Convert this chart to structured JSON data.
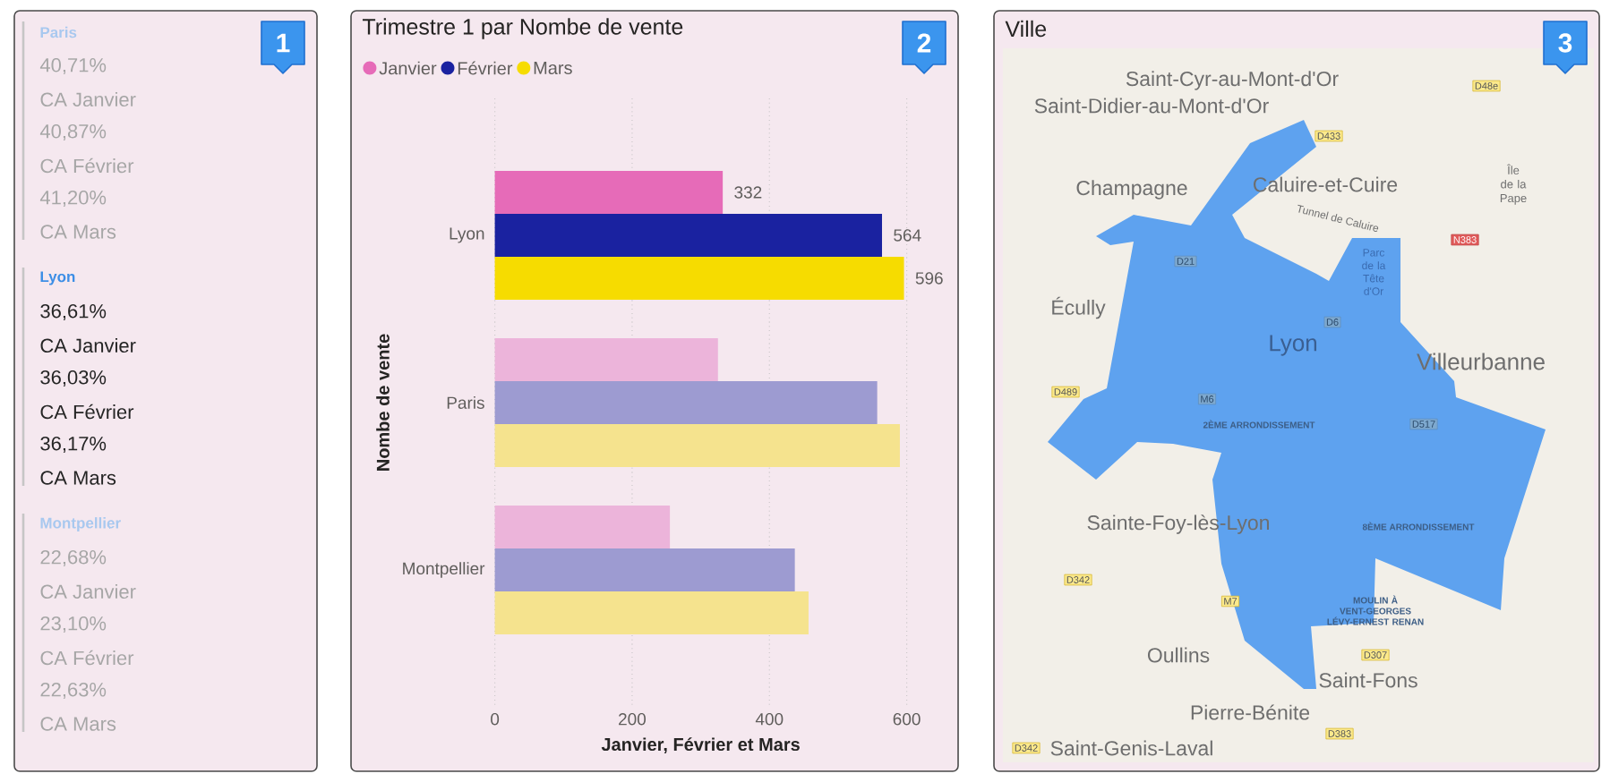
{
  "chart_data": [
    {
      "type": "other",
      "categories": [
        "Paris",
        "Lyon",
        "Montpellier"
      ],
      "annotations": [
        "1",
        "40,71%",
        "CA Janvier",
        "40,87%",
        "CA Février",
        "41,20%",
        "CA Mars",
        "36,61%",
        "CA Janvier",
        "36,03%",
        "CA Février",
        "36,17%",
        "CA Mars",
        "22,68%",
        "CA Janvier",
        "23,10%",
        "CA Février",
        "22,63%",
        "CA Mars"
      ]
    },
    {
      "type": "bar",
      "orientation": "horizontal",
      "title": "Trimestre 1 par Nombe de vente",
      "xlabel": "Janvier, Février et Mars",
      "ylabel": "Nombe de vente",
      "categories": [
        "Lyon",
        "Paris",
        "Montpellier"
      ],
      "series": [
        {
          "name": "Janvier",
          "color": "#e66bb8",
          "colors": [
            "#e66bb8",
            "#ecb4da",
            "#ecb4da"
          ],
          "values": [
            332,
            325,
            255
          ],
          "value_labels": [
            "332",
            null,
            null
          ]
        },
        {
          "name": "Février",
          "color": "#1a22a0",
          "colors": [
            "#1a22a0",
            "#9d9bd1",
            "#9d9bd1"
          ],
          "values": [
            564,
            557,
            437
          ],
          "value_labels": [
            "564",
            null,
            null
          ]
        },
        {
          "name": "Mars",
          "color": "#f6dc00",
          "colors": [
            "#f6dc00",
            "#f5e38e",
            "#f5e38e"
          ],
          "values": [
            596,
            590,
            457
          ],
          "value_labels": [
            "596",
            null,
            null
          ]
        }
      ],
      "xlim": [
        0,
        600
      ],
      "xticks": [
        0,
        200,
        400,
        600
      ],
      "grid": "x",
      "legend": "top left",
      "annotations": [
        "2"
      ]
    },
    {
      "type": "other",
      "title": "Ville",
      "annotations": [
        "3",
        "Saint-Cyr-au-Mont-d'Or",
        "Saint-Didier-au-Mont-d'Or",
        "Champagne",
        "Caluire-et-Cuire",
        "Île de la Pape",
        "Tunnel de Caluire",
        "Parc de la Tête d'Or",
        "Écully",
        "Lyon",
        "Villeurbanne",
        "Sainte-Foy-lès-Lyon",
        "2ÈME ARRONDISSEMENT",
        "8ÈME ARRONDISSEMENT",
        "MOULIN À VENT-GEORGES LÉVY-ERNEST RENAN",
        "Oullins",
        "Saint-Fons",
        "Pierre-Bénite",
        "Saint-Genis-Laval",
        "D48e",
        "D433",
        "N383",
        "D21",
        "D6",
        "D489",
        "M6",
        "D517",
        "D342",
        "M7",
        "D307",
        "D383",
        "D342"
      ]
    }
  ]
}
